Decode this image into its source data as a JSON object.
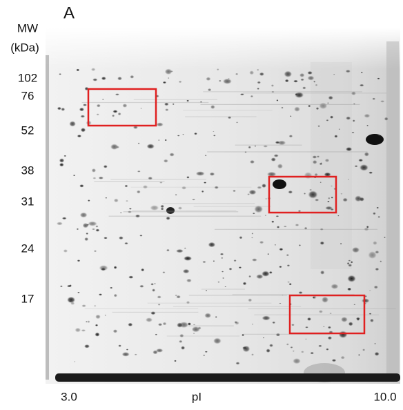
{
  "panel": {
    "label": "A"
  },
  "y_axis": {
    "title_line1": "MW",
    "title_line2": "(kDa)",
    "labels": [
      "102",
      "76",
      "52",
      "38",
      "31",
      "24",
      "17"
    ]
  },
  "x_axis": {
    "left": "3.0",
    "title": "pI",
    "right": "10.0"
  }
}
